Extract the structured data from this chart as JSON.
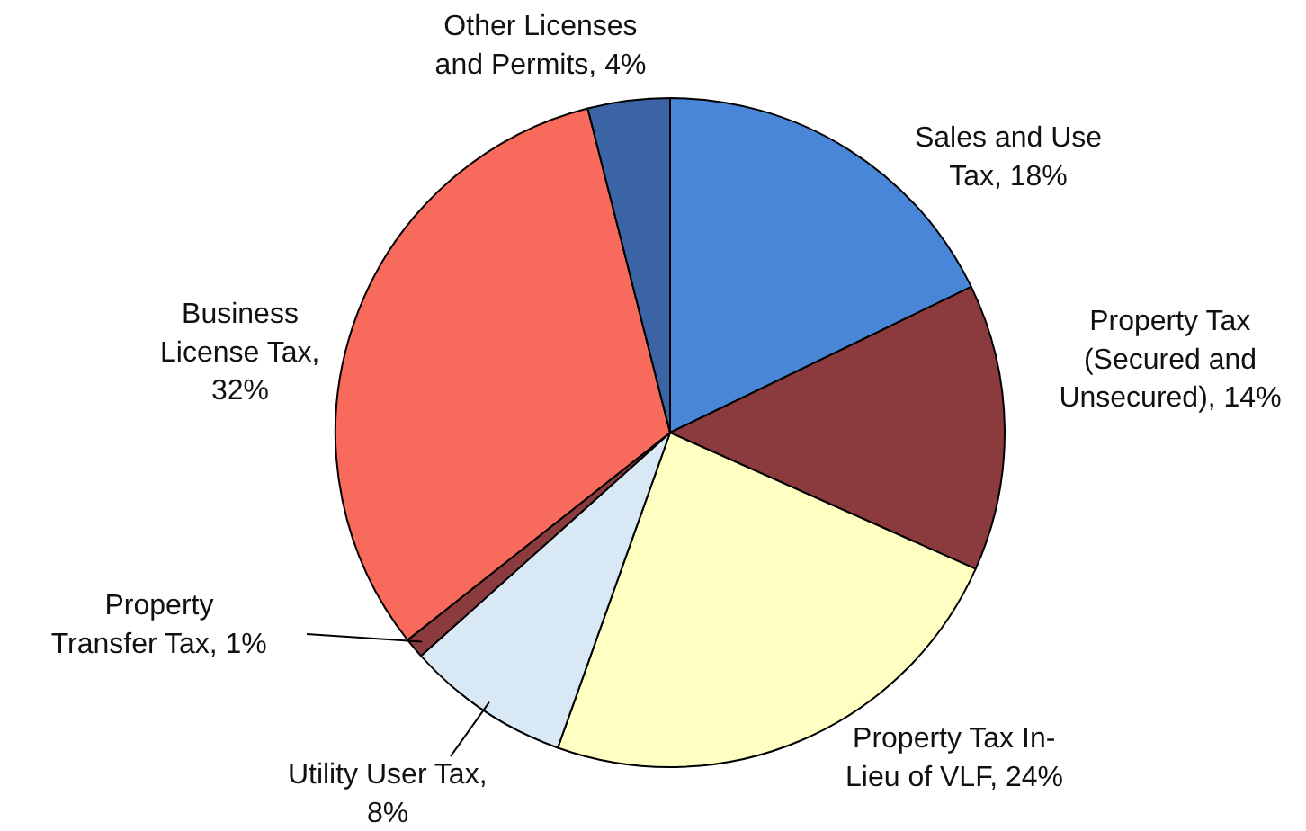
{
  "chart_data": {
    "type": "pie",
    "categories": [
      "Sales and Use Tax, 18%",
      "Property Tax (Secured and Unsecured), 14%",
      "Property Tax In-Lieu of VLF, 24%",
      "Utility User Tax, 8%",
      "Property Transfer Tax, 1%",
      "Business License Tax, 32%",
      "Other Licenses and Permits, 4%"
    ],
    "values": [
      18,
      14,
      24,
      8,
      1,
      32,
      4
    ],
    "colors": [
      "#4a86d8",
      "#8b3a3e",
      "#ffffc2",
      "#d8e8f4",
      "#8b3a3e",
      "#f86a5c",
      "#3a64a4"
    ]
  }
}
